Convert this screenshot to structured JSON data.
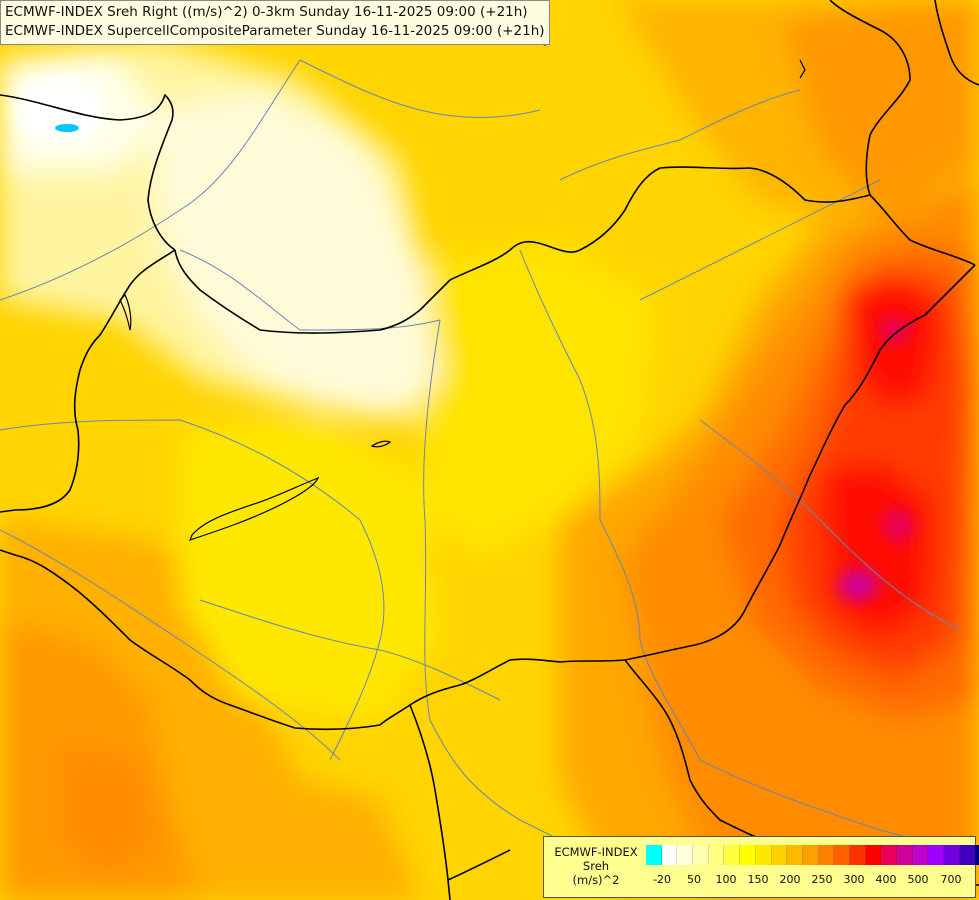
{
  "title": {
    "line1": "ECMWF-INDEX Sreh Right ((m/s)^2) 0-3km Sunday 16-11-2025 09:00 (+21h)",
    "line2": "ECMWF-INDEX SupercellCompositeParameter Sunday 16-11-2025 09:00 (+21h)"
  },
  "legend": {
    "title_line1": "ECMWF-INDEX",
    "title_line2": "Sreh",
    "title_line3": "(m/s)^2",
    "colors": [
      "#00ffff",
      "#ffffff",
      "#ffffe0",
      "#ffffb0",
      "#ffff80",
      "#ffff40",
      "#ffff00",
      "#ffe800",
      "#ffd000",
      "#ffb800",
      "#ffa000",
      "#ff8000",
      "#ff6000",
      "#ff3000",
      "#ff0000",
      "#e8005a",
      "#d0009a",
      "#c000d0",
      "#a000ff",
      "#7000e0",
      "#4000c0",
      "#000080"
    ],
    "ticks": [
      "-20",
      "50",
      "100",
      "150",
      "200",
      "250",
      "300",
      "400",
      "500",
      "700"
    ]
  },
  "colors": {
    "border": "#000000",
    "river": "#6a86b0",
    "lake": "#00bfff"
  }
}
